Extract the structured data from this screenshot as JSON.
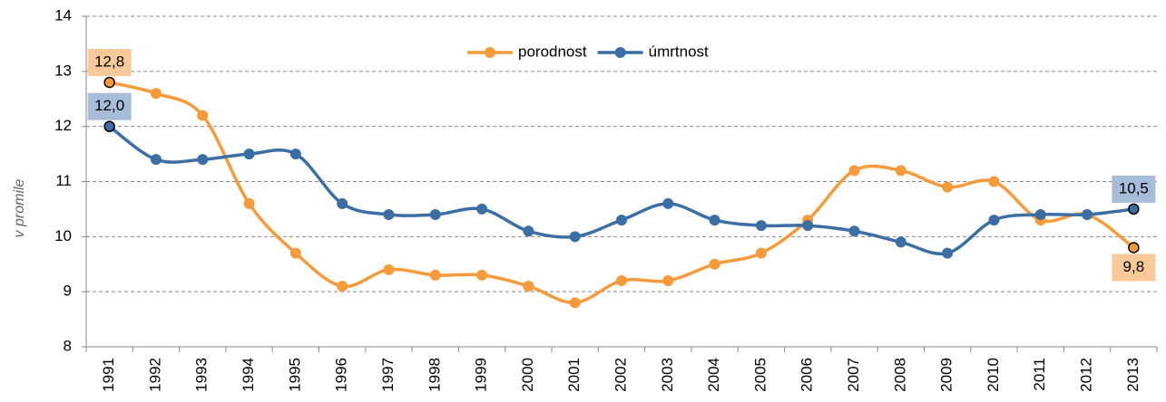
{
  "chart_data": {
    "type": "line",
    "y_label": "v promile",
    "categories": [
      "1991",
      "1992",
      "1993",
      "1994",
      "1995",
      "1996",
      "1997",
      "1998",
      "1999",
      "2000",
      "2001",
      "2002",
      "2003",
      "2004",
      "2005",
      "2006",
      "2007",
      "2008",
      "2009",
      "2010",
      "2011",
      "2012",
      "2013"
    ],
    "series": [
      {
        "name": "porodnost",
        "color": "#f79a3a",
        "label_bg": "#fac99a",
        "values": [
          12.8,
          12.6,
          12.2,
          10.6,
          9.7,
          9.1,
          9.4,
          9.3,
          9.3,
          9.1,
          8.8,
          9.2,
          9.2,
          9.5,
          9.7,
          10.3,
          11.2,
          11.2,
          10.9,
          11.0,
          10.3,
          10.4,
          9.8
        ],
        "value_labels": [
          "12,8",
          null,
          null,
          null,
          null,
          null,
          null,
          null,
          null,
          null,
          null,
          null,
          null,
          null,
          null,
          null,
          null,
          null,
          null,
          null,
          null,
          null,
          "9,8"
        ]
      },
      {
        "name": "úmrtnost",
        "color": "#3b6ea5",
        "label_bg": "#a6bcd8",
        "values": [
          12.0,
          11.4,
          11.4,
          11.5,
          11.5,
          10.6,
          10.4,
          10.4,
          10.5,
          10.1,
          10.0,
          10.3,
          10.6,
          10.3,
          10.2,
          10.2,
          10.1,
          9.9,
          9.7,
          10.3,
          10.4,
          10.4,
          10.5
        ],
        "value_labels": [
          "12,0",
          null,
          null,
          null,
          null,
          null,
          null,
          null,
          null,
          null,
          null,
          null,
          null,
          null,
          null,
          null,
          null,
          null,
          null,
          null,
          null,
          null,
          "10,5"
        ]
      }
    ],
    "ylim": [
      8,
      14
    ],
    "yticks": [
      8,
      9,
      10,
      11,
      12,
      13,
      14
    ],
    "grid": true
  }
}
